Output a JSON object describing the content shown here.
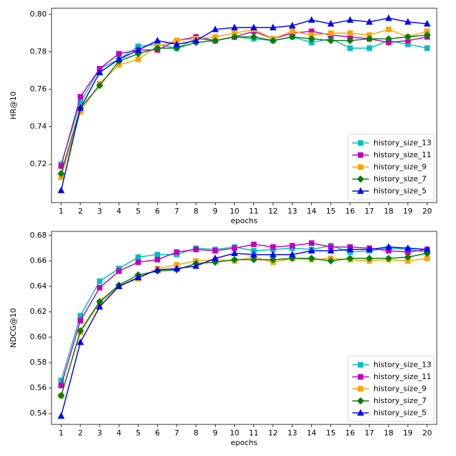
{
  "chart_data": [
    {
      "type": "line",
      "xlabel": "epochs",
      "ylabel": "HR@10",
      "x": [
        1,
        2,
        3,
        4,
        5,
        6,
        7,
        8,
        9,
        10,
        11,
        12,
        13,
        14,
        15,
        16,
        17,
        18,
        19,
        20
      ],
      "xlim": [
        0.5,
        20.5
      ],
      "xticks": [
        1,
        2,
        3,
        4,
        5,
        6,
        7,
        8,
        9,
        10,
        11,
        12,
        13,
        14,
        15,
        16,
        17,
        18,
        19,
        20
      ],
      "ylim": [
        0.6995,
        0.8033
      ],
      "yticks": [
        0.72,
        0.74,
        0.76,
        0.78,
        {
          "value": 0.8,
          "label": "0.80"
        }
      ],
      "legend": "lower right",
      "series": [
        {
          "name": "history_size_13",
          "color": "#00bfbf",
          "marker": "square",
          "values": [
            0.72,
            0.753,
            0.771,
            0.776,
            0.783,
            0.784,
            0.782,
            0.787,
            0.786,
            0.788,
            0.787,
            0.786,
            0.788,
            0.785,
            0.787,
            0.782,
            0.782,
            0.786,
            0.784,
            0.782
          ]
        },
        {
          "name": "history_size_11",
          "color": "#bf00bf",
          "marker": "square",
          "values": [
            0.719,
            0.756,
            0.771,
            0.779,
            0.781,
            0.781,
            0.786,
            0.788,
            0.786,
            0.788,
            0.791,
            0.787,
            0.79,
            0.791,
            0.789,
            0.788,
            0.787,
            0.785,
            0.786,
            0.788
          ]
        },
        {
          "name": "history_size_9",
          "color": "#ffa500",
          "marker": "square",
          "values": [
            0.713,
            0.748,
            0.763,
            0.773,
            0.776,
            0.783,
            0.786,
            0.787,
            0.788,
            0.79,
            0.792,
            0.787,
            0.791,
            0.789,
            0.79,
            0.79,
            0.789,
            0.792,
            0.788,
            0.791
          ]
        },
        {
          "name": "history_size_7",
          "color": "#008000",
          "marker": "diamond",
          "values": [
            0.715,
            0.75,
            0.762,
            0.775,
            0.779,
            0.782,
            0.782,
            0.785,
            0.786,
            0.788,
            0.788,
            0.786,
            0.788,
            0.787,
            0.786,
            0.786,
            0.787,
            0.787,
            0.788,
            0.789
          ]
        },
        {
          "name": "history_size_5",
          "color": "#0000ff",
          "marker": "triangle",
          "values": [
            0.706,
            0.75,
            0.769,
            0.776,
            0.781,
            0.786,
            0.784,
            0.786,
            0.792,
            0.793,
            0.793,
            0.793,
            0.794,
            0.797,
            0.795,
            0.797,
            0.796,
            0.798,
            0.796,
            0.795
          ]
        }
      ]
    },
    {
      "type": "line",
      "xlabel": "epochs",
      "ylabel": "NDCG@10",
      "x": [
        1,
        2,
        3,
        4,
        5,
        6,
        7,
        8,
        9,
        10,
        11,
        12,
        13,
        14,
        15,
        16,
        17,
        18,
        19,
        20
      ],
      "xlim": [
        0.5,
        20.5
      ],
      "xticks": [
        1,
        2,
        3,
        4,
        5,
        6,
        7,
        8,
        9,
        10,
        11,
        12,
        13,
        14,
        15,
        16,
        17,
        18,
        19,
        20
      ],
      "ylim": [
        0.5314,
        0.6832
      ],
      "yticks": [
        0.54,
        0.56,
        0.58,
        {
          "value": 0.6,
          "label": "0.60"
        },
        0.62,
        0.64,
        0.66,
        0.68
      ],
      "legend": "lower right",
      "series": [
        {
          "name": "history_size_13",
          "color": "#00bfbf",
          "marker": "square",
          "values": [
            0.566,
            0.617,
            0.644,
            0.654,
            0.663,
            0.665,
            0.665,
            0.67,
            0.669,
            0.671,
            0.668,
            0.669,
            0.67,
            0.669,
            0.672,
            0.667,
            0.668,
            0.67,
            0.669,
            0.667
          ]
        },
        {
          "name": "history_size_11",
          "color": "#bf00bf",
          "marker": "square",
          "values": [
            0.562,
            0.613,
            0.639,
            0.652,
            0.659,
            0.661,
            0.667,
            0.669,
            0.668,
            0.67,
            0.673,
            0.671,
            0.672,
            0.674,
            0.671,
            0.671,
            0.67,
            0.668,
            0.667,
            0.669
          ]
        },
        {
          "name": "history_size_9",
          "color": "#ffa500",
          "marker": "square",
          "values": [
            0.554,
            0.604,
            0.627,
            0.64,
            0.646,
            0.654,
            0.657,
            0.66,
            0.661,
            0.66,
            0.663,
            0.659,
            0.662,
            0.661,
            0.662,
            0.661,
            0.66,
            0.661,
            0.66,
            0.662
          ]
        },
        {
          "name": "history_size_7",
          "color": "#008000",
          "marker": "diamond",
          "values": [
            0.554,
            0.605,
            0.628,
            0.641,
            0.649,
            0.652,
            0.653,
            0.658,
            0.659,
            0.661,
            0.661,
            0.661,
            0.662,
            0.662,
            0.66,
            0.662,
            0.662,
            0.662,
            0.663,
            0.666
          ]
        },
        {
          "name": "history_size_5",
          "color": "#0000ff",
          "marker": "triangle",
          "values": [
            0.538,
            0.596,
            0.624,
            0.64,
            0.647,
            0.653,
            0.654,
            0.656,
            0.662,
            0.666,
            0.665,
            0.665,
            0.665,
            0.668,
            0.668,
            0.669,
            0.669,
            0.671,
            0.67,
            0.669
          ]
        }
      ]
    }
  ]
}
